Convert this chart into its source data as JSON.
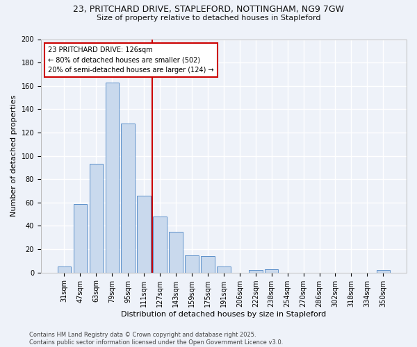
{
  "title_line1": "23, PRITCHARD DRIVE, STAPLEFORD, NOTTINGHAM, NG9 7GW",
  "title_line2": "Size of property relative to detached houses in Stapleford",
  "xlabel": "Distribution of detached houses by size in Stapleford",
  "ylabel": "Number of detached properties",
  "categories": [
    "31sqm",
    "47sqm",
    "63sqm",
    "79sqm",
    "95sqm",
    "111sqm",
    "127sqm",
    "143sqm",
    "159sqm",
    "175sqm",
    "191sqm",
    "206sqm",
    "222sqm",
    "238sqm",
    "254sqm",
    "270sqm",
    "286sqm",
    "302sqm",
    "318sqm",
    "334sqm",
    "350sqm"
  ],
  "values": [
    5,
    59,
    93,
    163,
    128,
    66,
    48,
    35,
    15,
    14,
    5,
    0,
    2,
    3,
    0,
    0,
    0,
    0,
    0,
    0,
    2
  ],
  "bar_color": "#c9d9ed",
  "bar_edge_color": "#5b8fc9",
  "ref_line_label": "23 PRITCHARD DRIVE: 126sqm",
  "annotation_line1": "← 80% of detached houses are smaller (502)",
  "annotation_line2": "20% of semi-detached houses are larger (124) →",
  "ylim": [
    0,
    200
  ],
  "yticks": [
    0,
    20,
    40,
    60,
    80,
    100,
    120,
    140,
    160,
    180,
    200
  ],
  "footer_line1": "Contains HM Land Registry data © Crown copyright and database right 2025.",
  "footer_line2": "Contains public sector information licensed under the Open Government Licence v3.0.",
  "bg_color": "#eef2f9",
  "grid_color": "#ffffff",
  "annotation_box_color": "#ffffff",
  "annotation_box_edge": "#cc0000",
  "ref_line_color": "#cc0000",
  "title_fontsize": 9,
  "subtitle_fontsize": 8,
  "ylabel_fontsize": 8,
  "xlabel_fontsize": 8,
  "tick_fontsize": 7,
  "footer_fontsize": 6
}
